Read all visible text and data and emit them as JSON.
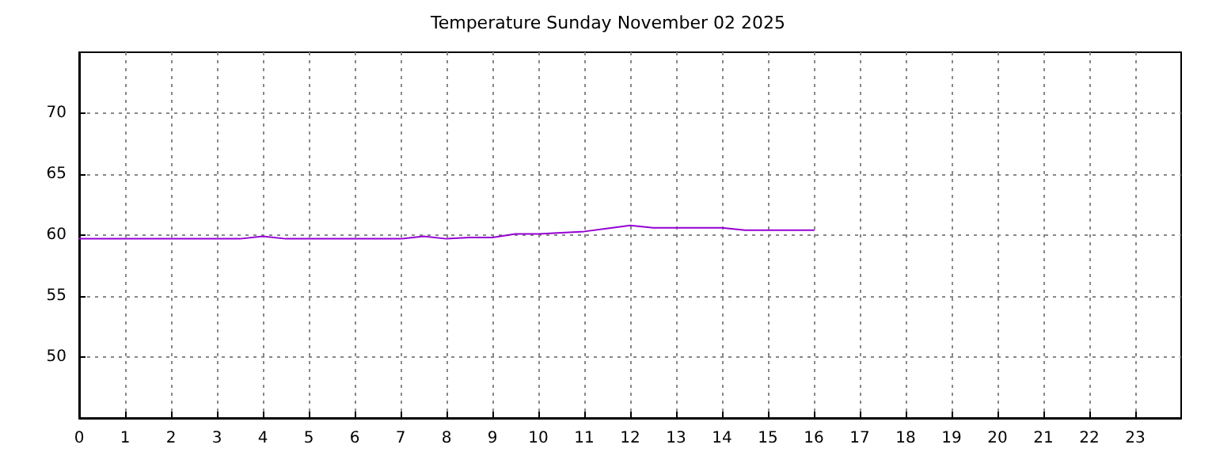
{
  "chart_data": {
    "type": "line",
    "title": "Temperature Sunday November 02 2025",
    "x": [
      0,
      1,
      2,
      3,
      3.5,
      4,
      4.5,
      5,
      6,
      7,
      7.5,
      8,
      8.5,
      9,
      9.5,
      10,
      11,
      12,
      12.5,
      13,
      14,
      14.5,
      15,
      16
    ],
    "series": [
      {
        "color": "#9400d3",
        "values": [
          59.7,
          59.7,
          59.7,
          59.7,
          59.7,
          59.9,
          59.7,
          59.7,
          59.7,
          59.7,
          59.9,
          59.7,
          59.8,
          59.8,
          60.1,
          60.1,
          60.3,
          60.8,
          60.6,
          60.6,
          60.6,
          60.4,
          60.4,
          60.4
        ]
      }
    ],
    "xlim": [
      0,
      24
    ],
    "xticks": [
      0,
      1,
      2,
      3,
      4,
      5,
      6,
      7,
      8,
      9,
      10,
      11,
      12,
      13,
      14,
      15,
      16,
      17,
      18,
      19,
      20,
      21,
      22,
      23
    ],
    "ylim": [
      45,
      75
    ],
    "yticks": [
      50,
      55,
      60,
      65,
      70
    ],
    "grid": true,
    "marker": "none",
    "line_style": "solid"
  }
}
